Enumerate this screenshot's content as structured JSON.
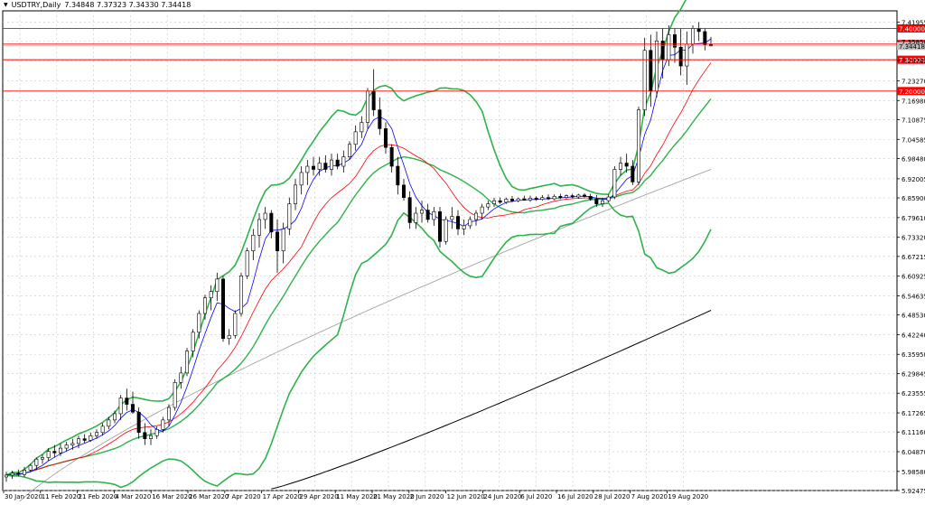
{
  "header": {
    "symbol_timeframe": "USDTRY,Daily",
    "ohlc": "7.34848 7.37323 7.34330 7.34418"
  },
  "chart_data": {
    "type": "candlestick",
    "symbol": "USDTRY",
    "timeframe": "Daily",
    "ylim": [
      5.92475,
      7.4561
    ],
    "price_ticks": [
      "7.41955",
      "7.35850",
      "7.29745",
      "7.23270",
      "7.16980",
      "7.10875",
      "7.04585",
      "6.98480",
      "6.92005",
      "6.85900",
      "6.79610",
      "6.73320",
      "6.67215",
      "6.60925",
      "6.54635",
      "6.48530",
      "6.42240",
      "6.35950",
      "6.29845",
      "6.23555",
      "6.17265",
      "6.11160",
      "6.04870",
      "5.98580",
      "5.92475"
    ],
    "date_labels": [
      "30 Jan 2020",
      "11 Feb 2020",
      "21 Feb 2020",
      "4 Mar 2020",
      "16 Mar 2020",
      "26 Mar 2020",
      "7 Apr 2020",
      "17 Apr 2020",
      "29 Apr 2020",
      "11 May 2020",
      "21 May 2020",
      "2 Jun 2020",
      "12 Jun 2020",
      "24 Jun 2020",
      "6 Jul 2020",
      "16 Jul 2020",
      "28 Jul 2020",
      "7 Aug 2020",
      "19 Aug 2020"
    ],
    "levels": [
      {
        "value": 7.4,
        "label": "7.40000"
      },
      {
        "value": 7.35,
        "label": "7.35000"
      },
      {
        "value": 7.3,
        "label": "7.30000"
      },
      {
        "value": 7.2,
        "label": "7.20000"
      }
    ],
    "current_price": {
      "value": 7.34418,
      "label": "7.34418"
    },
    "colors": {
      "background": "#ffffff",
      "grid": "#c8c8c8",
      "level_line": "#ff0000",
      "bollinger": "#2eb34a",
      "ma_fast": "#0000ff",
      "ma_mid": "#ff0000",
      "ma_slow": "#999999",
      "ma_long": "#000000",
      "bull_candle": "#ffffff",
      "bear_candle": "#000000"
    },
    "candles": [
      {
        "o": 5.968,
        "h": 5.985,
        "l": 5.953,
        "c": 5.974
      },
      {
        "o": 5.974,
        "h": 5.988,
        "l": 5.962,
        "c": 5.98
      },
      {
        "o": 5.98,
        "h": 5.992,
        "l": 5.97,
        "c": 5.976
      },
      {
        "o": 5.976,
        "h": 6.0,
        "l": 5.968,
        "c": 5.99
      },
      {
        "o": 5.99,
        "h": 6.01,
        "l": 5.985,
        "c": 6.005
      },
      {
        "o": 6.005,
        "h": 6.03,
        "l": 5.99,
        "c": 6.025
      },
      {
        "o": 6.025,
        "h": 6.04,
        "l": 6.01,
        "c": 6.03
      },
      {
        "o": 6.03,
        "h": 6.06,
        "l": 6.02,
        "c": 6.05
      },
      {
        "o": 6.05,
        "h": 6.07,
        "l": 6.03,
        "c": 6.045
      },
      {
        "o": 6.045,
        "h": 6.075,
        "l": 6.035,
        "c": 6.06
      },
      {
        "o": 6.06,
        "h": 6.08,
        "l": 6.05,
        "c": 6.07
      },
      {
        "o": 6.07,
        "h": 6.09,
        "l": 6.055,
        "c": 6.075
      },
      {
        "o": 6.075,
        "h": 6.1,
        "l": 6.06,
        "c": 6.09
      },
      {
        "o": 6.09,
        "h": 6.105,
        "l": 6.075,
        "c": 6.085
      },
      {
        "o": 6.085,
        "h": 6.11,
        "l": 6.08,
        "c": 6.1
      },
      {
        "o": 6.1,
        "h": 6.12,
        "l": 6.09,
        "c": 6.11
      },
      {
        "o": 6.11,
        "h": 6.14,
        "l": 6.1,
        "c": 6.13
      },
      {
        "o": 6.13,
        "h": 6.16,
        "l": 6.12,
        "c": 6.15
      },
      {
        "o": 6.15,
        "h": 6.18,
        "l": 6.14,
        "c": 6.17
      },
      {
        "o": 6.17,
        "h": 6.23,
        "l": 6.15,
        "c": 6.22
      },
      {
        "o": 6.22,
        "h": 6.25,
        "l": 6.18,
        "c": 6.2
      },
      {
        "o": 6.2,
        "h": 6.24,
        "l": 6.17,
        "c": 6.175
      },
      {
        "o": 6.175,
        "h": 6.19,
        "l": 6.09,
        "c": 6.11
      },
      {
        "o": 6.11,
        "h": 6.14,
        "l": 6.07,
        "c": 6.09
      },
      {
        "o": 6.09,
        "h": 6.12,
        "l": 6.07,
        "c": 6.1
      },
      {
        "o": 6.1,
        "h": 6.13,
        "l": 6.09,
        "c": 6.12
      },
      {
        "o": 6.12,
        "h": 6.16,
        "l": 6.11,
        "c": 6.15
      },
      {
        "o": 6.15,
        "h": 6.2,
        "l": 6.13,
        "c": 6.19
      },
      {
        "o": 6.19,
        "h": 6.28,
        "l": 6.18,
        "c": 6.27
      },
      {
        "o": 6.27,
        "h": 6.32,
        "l": 6.25,
        "c": 6.3
      },
      {
        "o": 6.3,
        "h": 6.38,
        "l": 6.29,
        "c": 6.37
      },
      {
        "o": 6.37,
        "h": 6.44,
        "l": 6.35,
        "c": 6.43
      },
      {
        "o": 6.43,
        "h": 6.5,
        "l": 6.41,
        "c": 6.49
      },
      {
        "o": 6.49,
        "h": 6.55,
        "l": 6.47,
        "c": 6.54
      },
      {
        "o": 6.54,
        "h": 6.58,
        "l": 6.5,
        "c": 6.56
      },
      {
        "o": 6.56,
        "h": 6.62,
        "l": 6.53,
        "c": 6.6
      },
      {
        "o": 6.6,
        "h": 6.61,
        "l": 6.4,
        "c": 6.41
      },
      {
        "o": 6.41,
        "h": 6.44,
        "l": 6.39,
        "c": 6.42
      },
      {
        "o": 6.42,
        "h": 6.5,
        "l": 6.41,
        "c": 6.49
      },
      {
        "o": 6.49,
        "h": 6.62,
        "l": 6.48,
        "c": 6.61
      },
      {
        "o": 6.61,
        "h": 6.7,
        "l": 6.6,
        "c": 6.69
      },
      {
        "o": 6.69,
        "h": 6.76,
        "l": 6.66,
        "c": 6.74
      },
      {
        "o": 6.74,
        "h": 6.81,
        "l": 6.7,
        "c": 6.79
      },
      {
        "o": 6.79,
        "h": 6.83,
        "l": 6.76,
        "c": 6.81
      },
      {
        "o": 6.81,
        "h": 6.82,
        "l": 6.73,
        "c": 6.75
      },
      {
        "o": 6.75,
        "h": 6.79,
        "l": 6.62,
        "c": 6.69
      },
      {
        "o": 6.69,
        "h": 6.78,
        "l": 6.65,
        "c": 6.76
      },
      {
        "o": 6.76,
        "h": 6.86,
        "l": 6.74,
        "c": 6.84
      },
      {
        "o": 6.84,
        "h": 6.92,
        "l": 6.82,
        "c": 6.9
      },
      {
        "o": 6.9,
        "h": 6.96,
        "l": 6.87,
        "c": 6.94
      },
      {
        "o": 6.94,
        "h": 6.98,
        "l": 6.9,
        "c": 6.96
      },
      {
        "o": 6.96,
        "h": 6.99,
        "l": 6.93,
        "c": 6.95
      },
      {
        "o": 6.95,
        "h": 6.99,
        "l": 6.93,
        "c": 6.97
      },
      {
        "o": 6.97,
        "h": 6.995,
        "l": 6.94,
        "c": 6.95
      },
      {
        "o": 6.95,
        "h": 7.0,
        "l": 6.93,
        "c": 6.98
      },
      {
        "o": 6.98,
        "h": 7.0,
        "l": 6.95,
        "c": 6.96
      },
      {
        "o": 6.96,
        "h": 7.01,
        "l": 6.94,
        "c": 6.99
      },
      {
        "o": 6.99,
        "h": 7.04,
        "l": 6.98,
        "c": 7.03
      },
      {
        "o": 7.03,
        "h": 7.09,
        "l": 7.01,
        "c": 7.07
      },
      {
        "o": 7.07,
        "h": 7.12,
        "l": 7.05,
        "c": 7.1
      },
      {
        "o": 7.1,
        "h": 7.21,
        "l": 7.08,
        "c": 7.2
      },
      {
        "o": 7.2,
        "h": 7.27,
        "l": 7.12,
        "c": 7.14
      },
      {
        "o": 7.14,
        "h": 7.18,
        "l": 7.06,
        "c": 7.08
      },
      {
        "o": 7.08,
        "h": 7.1,
        "l": 7.0,
        "c": 7.02
      },
      {
        "o": 7.02,
        "h": 7.03,
        "l": 6.94,
        "c": 6.96
      },
      {
        "o": 6.96,
        "h": 6.99,
        "l": 6.87,
        "c": 6.9
      },
      {
        "o": 6.9,
        "h": 6.92,
        "l": 6.85,
        "c": 6.86
      },
      {
        "o": 6.86,
        "h": 6.88,
        "l": 6.76,
        "c": 6.78
      },
      {
        "o": 6.78,
        "h": 6.83,
        "l": 6.76,
        "c": 6.81
      },
      {
        "o": 6.81,
        "h": 6.85,
        "l": 6.78,
        "c": 6.82
      },
      {
        "o": 6.82,
        "h": 6.84,
        "l": 6.78,
        "c": 6.79
      },
      {
        "o": 6.79,
        "h": 6.83,
        "l": 6.77,
        "c": 6.815
      },
      {
        "o": 6.815,
        "h": 6.83,
        "l": 6.7,
        "c": 6.72
      },
      {
        "o": 6.72,
        "h": 6.8,
        "l": 6.71,
        "c": 6.79
      },
      {
        "o": 6.79,
        "h": 6.83,
        "l": 6.76,
        "c": 6.8
      },
      {
        "o": 6.8,
        "h": 6.82,
        "l": 6.74,
        "c": 6.76
      },
      {
        "o": 6.76,
        "h": 6.79,
        "l": 6.74,
        "c": 6.77
      },
      {
        "o": 6.77,
        "h": 6.8,
        "l": 6.76,
        "c": 6.79
      },
      {
        "o": 6.79,
        "h": 6.82,
        "l": 6.77,
        "c": 6.81
      },
      {
        "o": 6.81,
        "h": 6.84,
        "l": 6.79,
        "c": 6.83
      },
      {
        "o": 6.83,
        "h": 6.85,
        "l": 6.82,
        "c": 6.84
      },
      {
        "o": 6.84,
        "h": 6.86,
        "l": 6.83,
        "c": 6.85
      },
      {
        "o": 6.85,
        "h": 6.86,
        "l": 6.84,
        "c": 6.845
      },
      {
        "o": 6.845,
        "h": 6.86,
        "l": 6.84,
        "c": 6.855
      },
      {
        "o": 6.855,
        "h": 6.865,
        "l": 6.845,
        "c": 6.85
      },
      {
        "o": 6.85,
        "h": 6.86,
        "l": 6.845,
        "c": 6.856
      },
      {
        "o": 6.856,
        "h": 6.866,
        "l": 6.85,
        "c": 6.852
      },
      {
        "o": 6.852,
        "h": 6.866,
        "l": 6.846,
        "c": 6.858
      },
      {
        "o": 6.858,
        "h": 6.864,
        "l": 6.85,
        "c": 6.854
      },
      {
        "o": 6.854,
        "h": 6.868,
        "l": 6.85,
        "c": 6.86
      },
      {
        "o": 6.86,
        "h": 6.87,
        "l": 6.852,
        "c": 6.856
      },
      {
        "o": 6.856,
        "h": 6.87,
        "l": 6.852,
        "c": 6.864
      },
      {
        "o": 6.864,
        "h": 6.872,
        "l": 6.855,
        "c": 6.86
      },
      {
        "o": 6.86,
        "h": 6.87,
        "l": 6.855,
        "c": 6.866
      },
      {
        "o": 6.866,
        "h": 6.872,
        "l": 6.858,
        "c": 6.862
      },
      {
        "o": 6.862,
        "h": 6.872,
        "l": 6.856,
        "c": 6.868
      },
      {
        "o": 6.868,
        "h": 6.874,
        "l": 6.86,
        "c": 6.864
      },
      {
        "o": 6.864,
        "h": 6.872,
        "l": 6.85,
        "c": 6.855
      },
      {
        "o": 6.855,
        "h": 6.868,
        "l": 6.83,
        "c": 6.84
      },
      {
        "o": 6.84,
        "h": 6.86,
        "l": 6.83,
        "c": 6.85
      },
      {
        "o": 6.85,
        "h": 6.87,
        "l": 6.845,
        "c": 6.862
      },
      {
        "o": 6.862,
        "h": 6.96,
        "l": 6.855,
        "c": 6.95
      },
      {
        "o": 6.95,
        "h": 6.99,
        "l": 6.93,
        "c": 6.97
      },
      {
        "o": 6.97,
        "h": 7.0,
        "l": 6.94,
        "c": 6.96
      },
      {
        "o": 6.96,
        "h": 6.98,
        "l": 6.9,
        "c": 6.91
      },
      {
        "o": 6.91,
        "h": 7.15,
        "l": 6.9,
        "c": 7.14
      },
      {
        "o": 7.14,
        "h": 7.37,
        "l": 7.12,
        "c": 7.33
      },
      {
        "o": 7.33,
        "h": 7.38,
        "l": 7.15,
        "c": 7.2
      },
      {
        "o": 7.2,
        "h": 7.39,
        "l": 7.18,
        "c": 7.36
      },
      {
        "o": 7.36,
        "h": 7.4,
        "l": 7.24,
        "c": 7.3
      },
      {
        "o": 7.3,
        "h": 7.41,
        "l": 7.28,
        "c": 7.38
      },
      {
        "o": 7.38,
        "h": 7.4,
        "l": 7.29,
        "c": 7.34
      },
      {
        "o": 7.34,
        "h": 7.4,
        "l": 7.25,
        "c": 7.28
      },
      {
        "o": 7.28,
        "h": 7.39,
        "l": 7.22,
        "c": 7.35
      },
      {
        "o": 7.35,
        "h": 7.41,
        "l": 7.32,
        "c": 7.4
      },
      {
        "o": 7.4,
        "h": 7.42,
        "l": 7.36,
        "c": 7.39
      },
      {
        "o": 7.39,
        "h": 7.4,
        "l": 7.33,
        "c": 7.348
      },
      {
        "o": 7.348,
        "h": 7.373,
        "l": 7.343,
        "c": 7.344
      }
    ]
  }
}
